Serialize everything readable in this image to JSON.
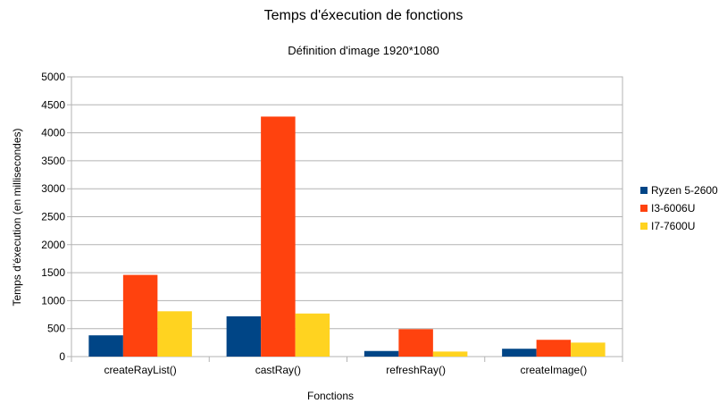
{
  "chart_data": {
    "type": "bar",
    "title": "Temps d'éxecution de fonctions",
    "subtitle": "Définition d'image 1920*1080",
    "xlabel": "Fonctions",
    "ylabel": "Temps d'éxecution (en millisecondes)",
    "ylim": [
      0,
      5000
    ],
    "yticks": [
      "0",
      "500",
      "1000",
      "1500",
      "2000",
      "2500",
      "3000",
      "3500",
      "4000",
      "4500",
      "5000"
    ],
    "grid": true,
    "legend_position": "right",
    "categories": [
      "createRayList()",
      "castRay()",
      "refreshRay()",
      "createImage()"
    ],
    "series": [
      {
        "name": "Ryzen 5-2600",
        "color": "#004586",
        "values": [
          380,
          720,
          100,
          140
        ]
      },
      {
        "name": "I3-6006U",
        "color": "#ff420e",
        "values": [
          1460,
          4290,
          490,
          300
        ]
      },
      {
        "name": "I7-7600U",
        "color": "#ffd320",
        "values": [
          810,
          770,
          90,
          250
        ]
      }
    ]
  }
}
